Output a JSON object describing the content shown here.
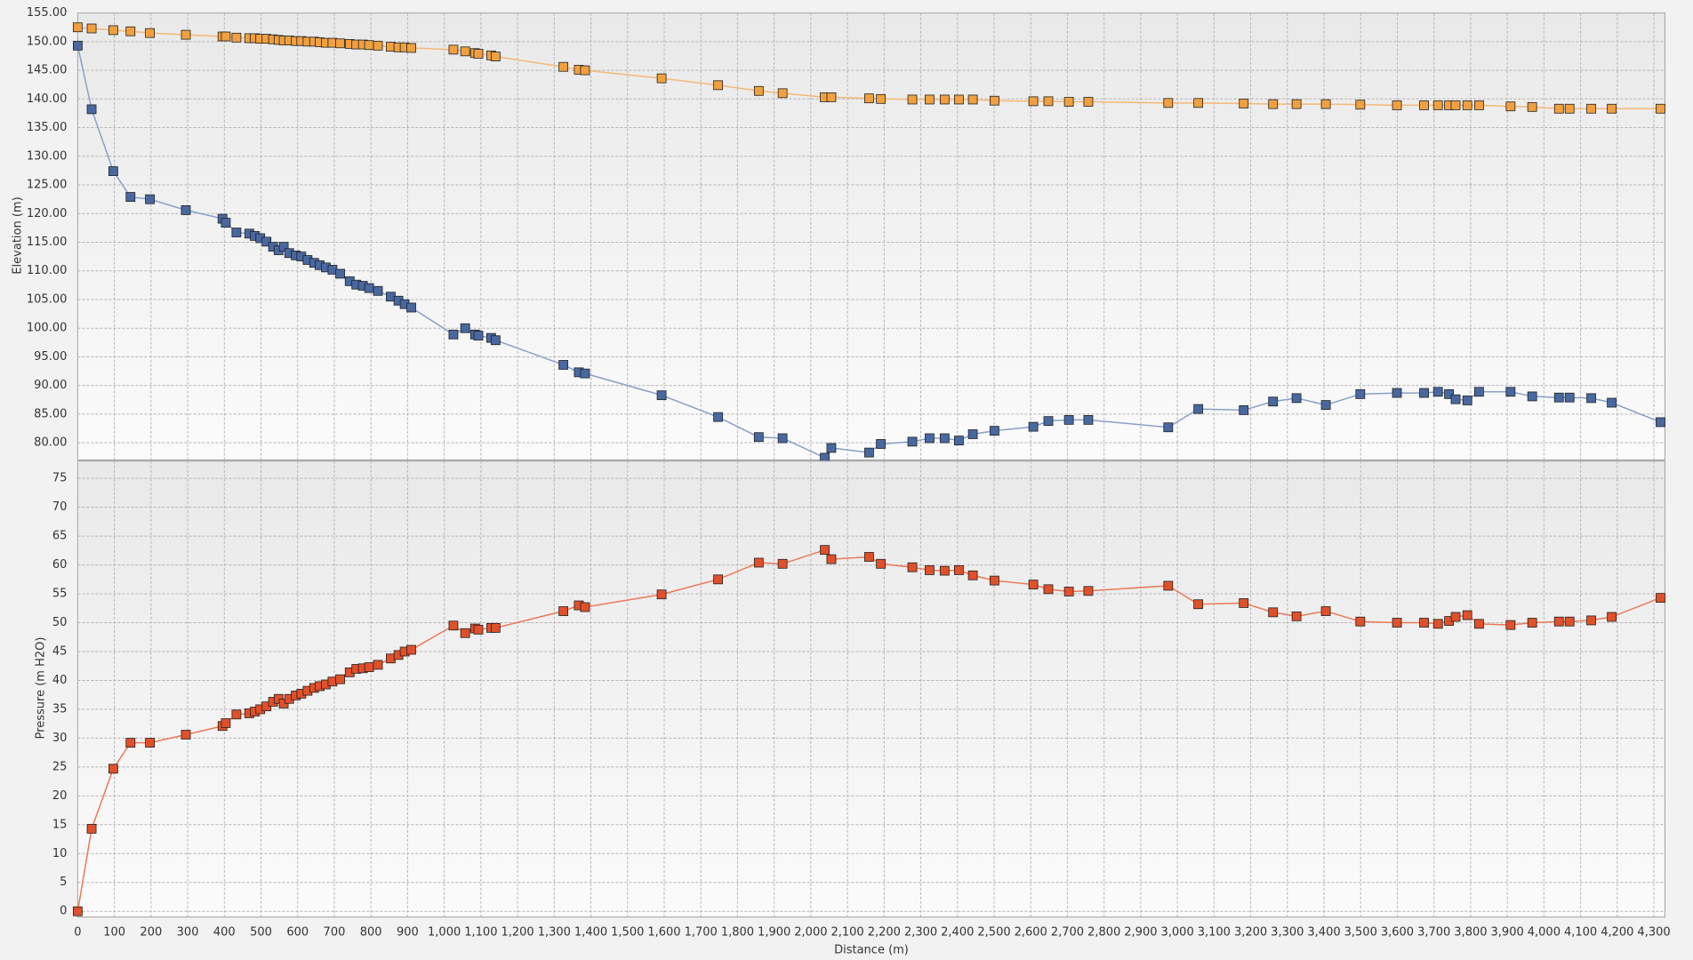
{
  "chart_data": [
    {
      "type": "line",
      "ylabel": "Elevation (m)",
      "xlim": [
        0,
        4330
      ],
      "ylim": [
        77,
        155
      ],
      "yticks": [
        {
          "value": 80,
          "label": "80.00"
        },
        {
          "value": 85,
          "label": "85.00"
        },
        {
          "value": 90,
          "label": "90.00"
        },
        {
          "value": 95,
          "label": "95.00"
        },
        {
          "value": 100,
          "label": "100.00"
        },
        {
          "value": 105,
          "label": "105.00"
        },
        {
          "value": 110,
          "label": "110.00"
        },
        {
          "value": 115,
          "label": "115.00"
        },
        {
          "value": 120,
          "label": "120.00"
        },
        {
          "value": 125,
          "label": "125.00"
        },
        {
          "value": 130,
          "label": "130.00"
        },
        {
          "value": 135,
          "label": "135.00"
        },
        {
          "value": 140,
          "label": "140.00"
        },
        {
          "value": 145,
          "label": "145.00"
        },
        {
          "value": 150,
          "label": "150.00"
        },
        {
          "value": 155,
          "label": "155.00"
        }
      ],
      "grid": true,
      "x": [
        0,
        38,
        97,
        144,
        197,
        295,
        395,
        404,
        433,
        468,
        483,
        498,
        515,
        533,
        548,
        562,
        577,
        595,
        610,
        627,
        645,
        660,
        677,
        695,
        716,
        742,
        760,
        778,
        795,
        819,
        854,
        875,
        892,
        910,
        1025,
        1057,
        1084,
        1093,
        1128,
        1140,
        1325,
        1367,
        1384,
        1593,
        1747,
        1858,
        1923,
        2038,
        2056,
        2159,
        2191,
        2277,
        2324,
        2365,
        2404,
        2442,
        2501,
        2607,
        2648,
        2704,
        2757,
        2975,
        3057,
        3181,
        3261,
        3325,
        3405,
        3499,
        3599,
        3673,
        3711,
        3741,
        3759,
        3791,
        3823,
        3909,
        3968,
        4041,
        4070,
        4129,
        4185,
        4318
      ],
      "series": [
        {
          "color": "#f0a040",
          "line_color": "#f5b878",
          "values": [
            152.5,
            152.3,
            152.0,
            151.8,
            151.5,
            151.2,
            150.9,
            150.9,
            150.7,
            150.6,
            150.6,
            150.5,
            150.5,
            150.4,
            150.3,
            150.2,
            150.2,
            150.1,
            150.1,
            150.0,
            150.0,
            149.9,
            149.8,
            149.8,
            149.7,
            149.6,
            149.5,
            149.5,
            149.4,
            149.3,
            149.1,
            149.0,
            149.0,
            148.9,
            148.6,
            148.3,
            148.0,
            147.9,
            147.6,
            147.4,
            145.6,
            145.1,
            145.0,
            143.6,
            142.4,
            141.4,
            141.0,
            140.3,
            140.3,
            140.1,
            140.0,
            139.9,
            139.9,
            139.9,
            139.9,
            139.9,
            139.7,
            139.6,
            139.6,
            139.5,
            139.5,
            139.3,
            139.3,
            139.2,
            139.1,
            139.1,
            139.1,
            139.0,
            138.9,
            138.9,
            138.9,
            138.9,
            138.9,
            138.9,
            138.9,
            138.7,
            138.6,
            138.3,
            138.3,
            138.3,
            138.3,
            138.3
          ]
        },
        {
          "color": "#4868a0",
          "line_color": "#8aa0c8",
          "values": [
            149.3,
            138.2,
            127.4,
            122.9,
            122.5,
            120.6,
            119.1,
            118.4,
            116.7,
            116.5,
            116.1,
            115.7,
            115.1,
            114.2,
            113.6,
            114.2,
            113.1,
            112.7,
            112.5,
            111.9,
            111.4,
            111.0,
            110.6,
            110.2,
            109.5,
            108.2,
            107.6,
            107.4,
            107.0,
            106.5,
            105.5,
            104.8,
            104.2,
            103.6,
            98.9,
            100.0,
            98.9,
            98.7,
            98.3,
            97.9,
            93.6,
            92.3,
            92.1,
            88.3,
            84.5,
            81.0,
            80.8,
            77.4,
            79.1,
            78.3,
            79.8,
            80.2,
            80.8,
            80.8,
            80.4,
            81.5,
            82.1,
            82.8,
            83.8,
            84.0,
            84.0,
            82.7,
            85.9,
            85.7,
            87.2,
            87.8,
            86.6,
            88.5,
            88.7,
            88.7,
            88.9,
            88.5,
            87.6,
            87.4,
            88.9,
            88.9,
            88.1,
            87.9,
            87.9,
            87.8,
            87.0,
            83.6
          ]
        }
      ]
    },
    {
      "type": "line",
      "ylabel": "Pressure (m H2O)",
      "xlabel": "Distance (m)",
      "xlim": [
        0,
        4330
      ],
      "ylim": [
        -1,
        78
      ],
      "xticks": [
        0,
        100,
        200,
        300,
        400,
        500,
        600,
        700,
        800,
        900,
        {
          "value": 1000,
          "label": "1,000"
        },
        {
          "value": 1100,
          "label": "1,100"
        },
        {
          "value": 1200,
          "label": "1,200"
        },
        {
          "value": 1300,
          "label": "1,300"
        },
        {
          "value": 1400,
          "label": "1,400"
        },
        {
          "value": 1500,
          "label": "1,500"
        },
        {
          "value": 1600,
          "label": "1,600"
        },
        {
          "value": 1700,
          "label": "1,700"
        },
        {
          "value": 1800,
          "label": "1,800"
        },
        {
          "value": 1900,
          "label": "1,900"
        },
        {
          "value": 2000,
          "label": "2,000"
        },
        {
          "value": 2100,
          "label": "2,100"
        },
        {
          "value": 2200,
          "label": "2,200"
        },
        {
          "value": 2300,
          "label": "2,300"
        },
        {
          "value": 2400,
          "label": "2,400"
        },
        {
          "value": 2500,
          "label": "2,500"
        },
        {
          "value": 2600,
          "label": "2,600"
        },
        {
          "value": 2700,
          "label": "2,700"
        },
        {
          "value": 2800,
          "label": "2,800"
        },
        {
          "value": 2900,
          "label": "2,900"
        },
        {
          "value": 3000,
          "label": "3,000"
        },
        {
          "value": 3100,
          "label": "3,100"
        },
        {
          "value": 3200,
          "label": "3,200"
        },
        {
          "value": 3300,
          "label": "3,300"
        },
        {
          "value": 3400,
          "label": "3,400"
        },
        {
          "value": 3500,
          "label": "3,500"
        },
        {
          "value": 3600,
          "label": "3,600"
        },
        {
          "value": 3700,
          "label": "3,700"
        },
        {
          "value": 3800,
          "label": "3,800"
        },
        {
          "value": 3900,
          "label": "3,900"
        },
        {
          "value": 4000,
          "label": "4,000"
        },
        {
          "value": 4100,
          "label": "4,100"
        },
        {
          "value": 4200,
          "label": "4,200"
        },
        {
          "value": 4300,
          "label": "4,300"
        }
      ],
      "yticks": [
        0,
        5,
        10,
        15,
        20,
        25,
        30,
        35,
        40,
        45,
        50,
        55,
        60,
        65,
        70,
        75
      ],
      "grid": true,
      "x": [
        0,
        38,
        97,
        144,
        197,
        295,
        395,
        404,
        433,
        468,
        483,
        498,
        515,
        533,
        548,
        562,
        577,
        595,
        610,
        627,
        645,
        660,
        677,
        695,
        716,
        742,
        760,
        778,
        795,
        819,
        854,
        875,
        892,
        910,
        1025,
        1057,
        1084,
        1093,
        1128,
        1140,
        1325,
        1367,
        1384,
        1593,
        1747,
        1858,
        1923,
        2038,
        2056,
        2159,
        2191,
        2277,
        2324,
        2365,
        2404,
        2442,
        2501,
        2607,
        2648,
        2704,
        2757,
        2975,
        3057,
        3181,
        3261,
        3325,
        3405,
        3499,
        3599,
        3673,
        3711,
        3741,
        3759,
        3791,
        3823,
        3909,
        3968,
        4041,
        4070,
        4129,
        4185,
        4318
      ],
      "series": [
        {
          "color": "#e0502a",
          "line_color": "#ea7a58",
          "values": [
            0,
            14.3,
            24.7,
            29.2,
            29.2,
            30.6,
            32.1,
            32.6,
            34.1,
            34.3,
            34.6,
            35,
            35.5,
            36.3,
            36.8,
            36,
            36.8,
            37.4,
            37.7,
            38.2,
            38.7,
            39,
            39.3,
            39.8,
            40.2,
            41.4,
            42,
            42.1,
            42.3,
            42.7,
            43.8,
            44.4,
            45,
            45.3,
            49.5,
            48.2,
            49,
            48.8,
            49.1,
            49.1,
            52,
            53,
            52.7,
            54.9,
            57.5,
            60.4,
            60.2,
            62.6,
            61,
            61.4,
            60.2,
            59.6,
            59.1,
            59,
            59.1,
            58.2,
            57.3,
            56.6,
            55.8,
            55.4,
            55.5,
            56.4,
            53.2,
            53.4,
            51.8,
            51.1,
            52,
            50.2,
            50,
            50,
            49.8,
            50.3,
            51,
            51.3,
            49.8,
            49.6,
            50,
            50.2,
            50.2,
            50.4,
            51,
            54.3
          ]
        }
      ]
    }
  ]
}
